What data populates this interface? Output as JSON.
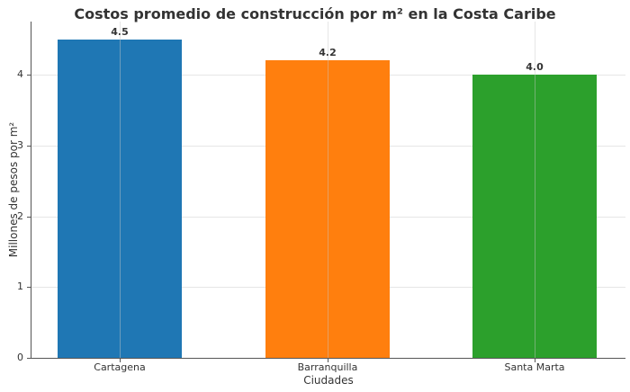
{
  "chart_data": {
    "type": "bar",
    "title": "Costos promedio de construcción por m² en la Costa Caribe",
    "xlabel": "Ciudades",
    "ylabel": "Millones de pesos por m²",
    "categories": [
      "Cartagena",
      "Barranquilla",
      "Santa Marta"
    ],
    "values": [
      4.5,
      4.2,
      4.0
    ],
    "value_labels": [
      "4.5",
      "4.2",
      "4.0"
    ],
    "colors": [
      "#1f77b4",
      "#ff7f0e",
      "#2ca02c"
    ],
    "yticks": [
      "0",
      "1",
      "2",
      "3",
      "4"
    ],
    "ylim": [
      0,
      4.73
    ],
    "grid": true,
    "legend": null
  }
}
